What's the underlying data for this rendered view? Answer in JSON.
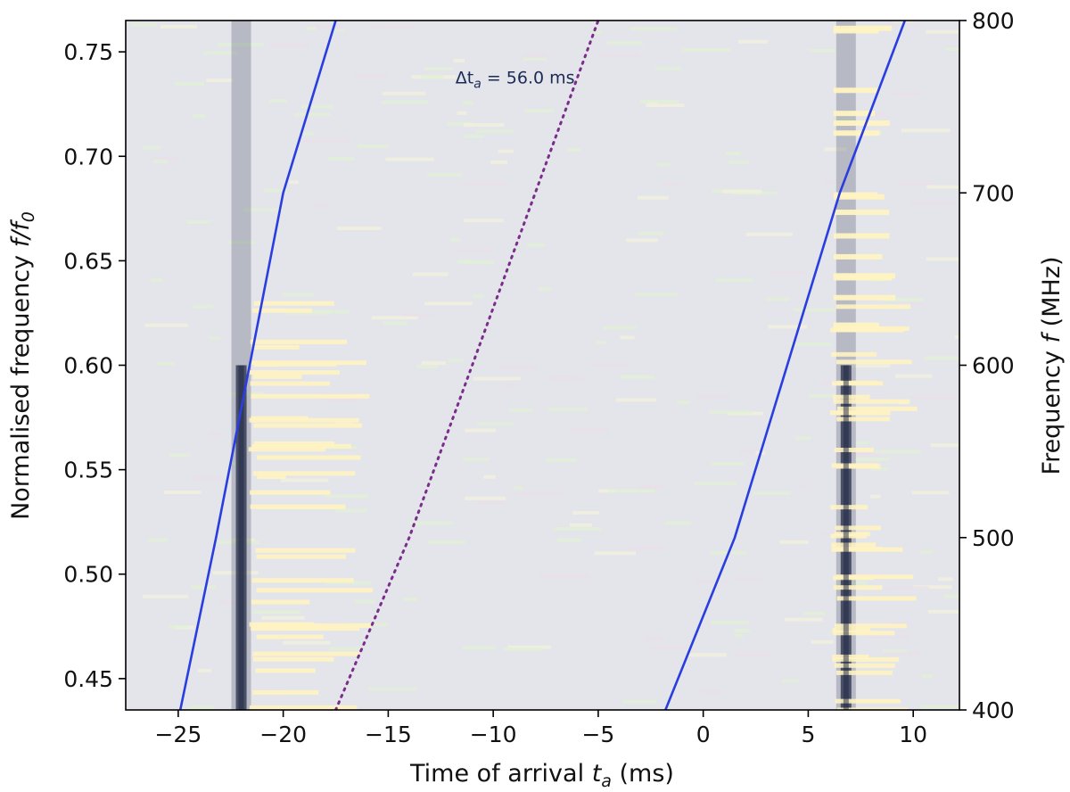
{
  "chart_data": {
    "type": "heatmap",
    "title": "",
    "xlabel": "Time of arrival",
    "xlabel_symbol": "t",
    "xlabel_sub": "a",
    "xlabel_unit": " (ms)",
    "ylabel": "Normalised frequency",
    "ylabel_symbol": "f/f",
    "ylabel_sub": "0",
    "y2label": "Frequency",
    "y2label_symbol": "f",
    "y2label_unit": " (MHz)",
    "xlim": [
      -27.5,
      12.2
    ],
    "ylim": [
      0.435,
      0.765
    ],
    "y2lim": [
      400,
      800
    ],
    "x_ticks": [
      -25,
      -20,
      -15,
      -10,
      -5,
      0,
      5,
      10
    ],
    "x_tick_labels": [
      "−25",
      "−20",
      "−15",
      "−10",
      "−5",
      "0",
      "5",
      "10"
    ],
    "y_ticks": [
      0.45,
      0.5,
      0.55,
      0.6,
      0.65,
      0.7,
      0.75
    ],
    "y_tick_labels": [
      "0.45",
      "0.50",
      "0.55",
      "0.60",
      "0.65",
      "0.70",
      "0.75"
    ],
    "y2_ticks": [
      400,
      500,
      600,
      700,
      800
    ],
    "y2_tick_labels": [
      "400",
      "500",
      "600",
      "700",
      "800"
    ],
    "grid": false,
    "colors": {
      "background": "#e3e5ea",
      "pulse_dark": "#1b2440",
      "bright": "#fff3c2",
      "greenish": "#e2f0d6",
      "curve": "#2a3ee0",
      "dotted": "#7a2d8a"
    },
    "pulses": [
      {
        "t": -22.0,
        "f_low": 400,
        "f_high": 800,
        "strong_above": 600
      },
      {
        "t": 6.8,
        "f_low": 400,
        "f_high": 800,
        "strong_above": 600
      }
    ],
    "series": [
      {
        "style": "solid",
        "points": [
          [
            -24.9,
            400
          ],
          [
            -23.2,
            500
          ],
          [
            -21.6,
            600
          ],
          [
            -20.0,
            700
          ],
          [
            -17.5,
            800
          ]
        ]
      },
      {
        "style": "dotted",
        "points": [
          [
            -17.5,
            400
          ],
          [
            -14.0,
            500
          ],
          [
            -11.0,
            600
          ],
          [
            -8.0,
            700
          ],
          [
            -5.0,
            800
          ]
        ]
      },
      {
        "style": "solid",
        "points": [
          [
            -1.8,
            400
          ],
          [
            1.5,
            500
          ],
          [
            4.0,
            600
          ],
          [
            6.5,
            700
          ],
          [
            9.6,
            800
          ]
        ]
      }
    ],
    "annotations": [
      {
        "text": "Δt",
        "sub": "a",
        "value": " = 56.0 ms",
        "x": -11.8,
        "y": 0.735
      }
    ]
  }
}
